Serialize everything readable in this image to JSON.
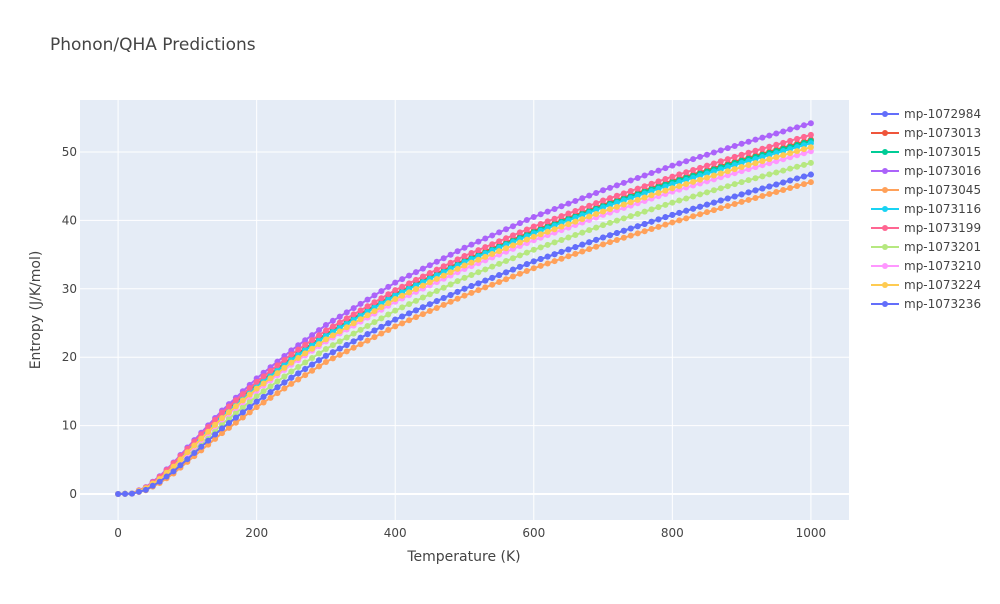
{
  "chart_data": {
    "type": "line",
    "title": "Phonon/QHA Predictions",
    "xlabel": "Temperature (K)",
    "ylabel": "Entropy (J/K/mol)",
    "xlim": [
      -55,
      1055
    ],
    "ylim": [
      -3.8,
      57.6
    ],
    "x_ticks": [
      0,
      200,
      400,
      600,
      800,
      1000
    ],
    "y_ticks": [
      0,
      10,
      20,
      30,
      40,
      50
    ],
    "grid": true,
    "legend_position": "right",
    "x_start": 0,
    "x_step": 10,
    "x_end": 1000,
    "series": [
      {
        "name": "mp-1072984",
        "color": "#636efa",
        "anchors": [
          [
            0,
            0
          ],
          [
            20,
            0.05
          ],
          [
            40,
            0.6
          ],
          [
            60,
            1.8
          ],
          [
            80,
            3.3
          ],
          [
            100,
            5.1
          ],
          [
            150,
            9.6
          ],
          [
            200,
            13.5
          ],
          [
            250,
            17.0
          ],
          [
            300,
            20.2
          ],
          [
            400,
            25.5
          ],
          [
            500,
            30.0
          ],
          [
            600,
            34.0
          ],
          [
            700,
            37.5
          ],
          [
            800,
            40.8
          ],
          [
            900,
            43.8
          ],
          [
            1000,
            46.7
          ]
        ]
      },
      {
        "name": "mp-1073013",
        "color": "#ef553b",
        "anchors": [
          [
            0,
            0
          ],
          [
            20,
            0.07
          ],
          [
            40,
            0.9
          ],
          [
            60,
            2.4
          ],
          [
            80,
            4.3
          ],
          [
            100,
            6.4
          ],
          [
            150,
            11.6
          ],
          [
            200,
            16.0
          ],
          [
            250,
            19.9
          ],
          [
            300,
            23.4
          ],
          [
            400,
            29.3
          ],
          [
            500,
            34.2
          ],
          [
            600,
            38.5
          ],
          [
            700,
            42.3
          ],
          [
            800,
            45.8
          ],
          [
            900,
            48.9
          ],
          [
            1000,
            51.8
          ]
        ]
      },
      {
        "name": "mp-1073015",
        "color": "#00cc96",
        "anchors": [
          [
            0,
            0
          ],
          [
            20,
            0.07
          ],
          [
            40,
            0.85
          ],
          [
            60,
            2.3
          ],
          [
            80,
            4.2
          ],
          [
            100,
            6.3
          ],
          [
            150,
            11.4
          ],
          [
            200,
            15.8
          ],
          [
            250,
            19.7
          ],
          [
            300,
            23.2
          ],
          [
            400,
            29.1
          ],
          [
            500,
            34.0
          ],
          [
            600,
            38.3
          ],
          [
            700,
            42.1
          ],
          [
            800,
            45.6
          ],
          [
            900,
            48.7
          ],
          [
            1000,
            51.6
          ]
        ]
      },
      {
        "name": "mp-1073016",
        "color": "#ab63fa",
        "anchors": [
          [
            0,
            0
          ],
          [
            20,
            0.08
          ],
          [
            40,
            1.0
          ],
          [
            60,
            2.6
          ],
          [
            80,
            4.6
          ],
          [
            100,
            6.8
          ],
          [
            150,
            12.2
          ],
          [
            200,
            16.9
          ],
          [
            250,
            21.0
          ],
          [
            300,
            24.7
          ],
          [
            400,
            30.9
          ],
          [
            500,
            36.0
          ],
          [
            600,
            40.5
          ],
          [
            700,
            44.4
          ],
          [
            800,
            48.0
          ],
          [
            900,
            51.2
          ],
          [
            1000,
            54.2
          ]
        ]
      },
      {
        "name": "mp-1073045",
        "color": "#ffa15a",
        "anchors": [
          [
            0,
            0
          ],
          [
            20,
            0.05
          ],
          [
            40,
            0.55
          ],
          [
            60,
            1.6
          ],
          [
            80,
            3.0
          ],
          [
            100,
            4.7
          ],
          [
            150,
            8.9
          ],
          [
            200,
            12.7
          ],
          [
            250,
            16.1
          ],
          [
            300,
            19.3
          ],
          [
            400,
            24.5
          ],
          [
            500,
            29.0
          ],
          [
            600,
            33.0
          ],
          [
            700,
            36.5
          ],
          [
            800,
            39.7
          ],
          [
            900,
            42.7
          ],
          [
            1000,
            45.6
          ]
        ]
      },
      {
        "name": "mp-1073116",
        "color": "#19d3f3",
        "anchors": [
          [
            0,
            0
          ],
          [
            20,
            0.07
          ],
          [
            40,
            0.85
          ],
          [
            60,
            2.3
          ],
          [
            80,
            4.2
          ],
          [
            100,
            6.3
          ],
          [
            150,
            11.4
          ],
          [
            200,
            15.7
          ],
          [
            250,
            19.6
          ],
          [
            300,
            23.1
          ],
          [
            400,
            29.0
          ],
          [
            500,
            33.9
          ],
          [
            600,
            38.1
          ],
          [
            700,
            41.9
          ],
          [
            800,
            45.3
          ],
          [
            900,
            48.4
          ],
          [
            1000,
            51.3
          ]
        ]
      },
      {
        "name": "mp-1073199",
        "color": "#ff6692",
        "anchors": [
          [
            0,
            0
          ],
          [
            20,
            0.08
          ],
          [
            40,
            0.95
          ],
          [
            60,
            2.5
          ],
          [
            80,
            4.5
          ],
          [
            100,
            6.6
          ],
          [
            150,
            11.9
          ],
          [
            200,
            16.4
          ],
          [
            250,
            20.4
          ],
          [
            300,
            23.9
          ],
          [
            400,
            29.8
          ],
          [
            500,
            34.8
          ],
          [
            600,
            39.1
          ],
          [
            700,
            42.9
          ],
          [
            800,
            46.4
          ],
          [
            900,
            49.6
          ],
          [
            1000,
            52.5
          ]
        ]
      },
      {
        "name": "mp-1073201",
        "color": "#b6e880",
        "anchors": [
          [
            0,
            0
          ],
          [
            20,
            0.06
          ],
          [
            40,
            0.7
          ],
          [
            60,
            1.9
          ],
          [
            80,
            3.6
          ],
          [
            100,
            5.5
          ],
          [
            150,
            10.2
          ],
          [
            200,
            14.3
          ],
          [
            250,
            17.9
          ],
          [
            300,
            21.2
          ],
          [
            400,
            26.8
          ],
          [
            500,
            31.6
          ],
          [
            600,
            35.7
          ],
          [
            700,
            39.3
          ],
          [
            800,
            42.6
          ],
          [
            900,
            45.6
          ],
          [
            1000,
            48.4
          ]
        ]
      },
      {
        "name": "mp-1073210",
        "color": "#ff97ff",
        "anchors": [
          [
            0,
            0
          ],
          [
            20,
            0.06
          ],
          [
            40,
            0.8
          ],
          [
            60,
            2.1
          ],
          [
            80,
            3.9
          ],
          [
            100,
            5.9
          ],
          [
            150,
            10.9
          ],
          [
            200,
            15.1
          ],
          [
            250,
            18.9
          ],
          [
            300,
            22.3
          ],
          [
            400,
            28.1
          ],
          [
            500,
            32.9
          ],
          [
            600,
            37.1
          ],
          [
            700,
            40.8
          ],
          [
            800,
            44.2
          ],
          [
            900,
            47.2
          ],
          [
            1000,
            50.1
          ]
        ]
      },
      {
        "name": "mp-1073224",
        "color": "#fecb52",
        "anchors": [
          [
            0,
            0
          ],
          [
            20,
            0.07
          ],
          [
            40,
            0.85
          ],
          [
            60,
            2.2
          ],
          [
            80,
            4.0
          ],
          [
            100,
            6.1
          ],
          [
            150,
            11.1
          ],
          [
            200,
            15.4
          ],
          [
            250,
            19.2
          ],
          [
            300,
            22.6
          ],
          [
            400,
            28.5
          ],
          [
            500,
            33.4
          ],
          [
            600,
            37.6
          ],
          [
            700,
            41.3
          ],
          [
            800,
            44.7
          ],
          [
            900,
            47.8
          ],
          [
            1000,
            50.7
          ]
        ]
      },
      {
        "name": "mp-1073236",
        "color": "#636efa",
        "anchors": [
          [
            0,
            0
          ],
          [
            20,
            0.05
          ],
          [
            40,
            0.6
          ],
          [
            60,
            1.8
          ],
          [
            80,
            3.3
          ],
          [
            100,
            5.1
          ],
          [
            150,
            9.6
          ],
          [
            200,
            13.5
          ],
          [
            250,
            17.0
          ],
          [
            300,
            20.2
          ],
          [
            400,
            25.5
          ],
          [
            500,
            30.0
          ],
          [
            600,
            34.0
          ],
          [
            700,
            37.5
          ],
          [
            800,
            40.8
          ],
          [
            900,
            43.8
          ],
          [
            1000,
            46.7
          ]
        ]
      }
    ]
  }
}
